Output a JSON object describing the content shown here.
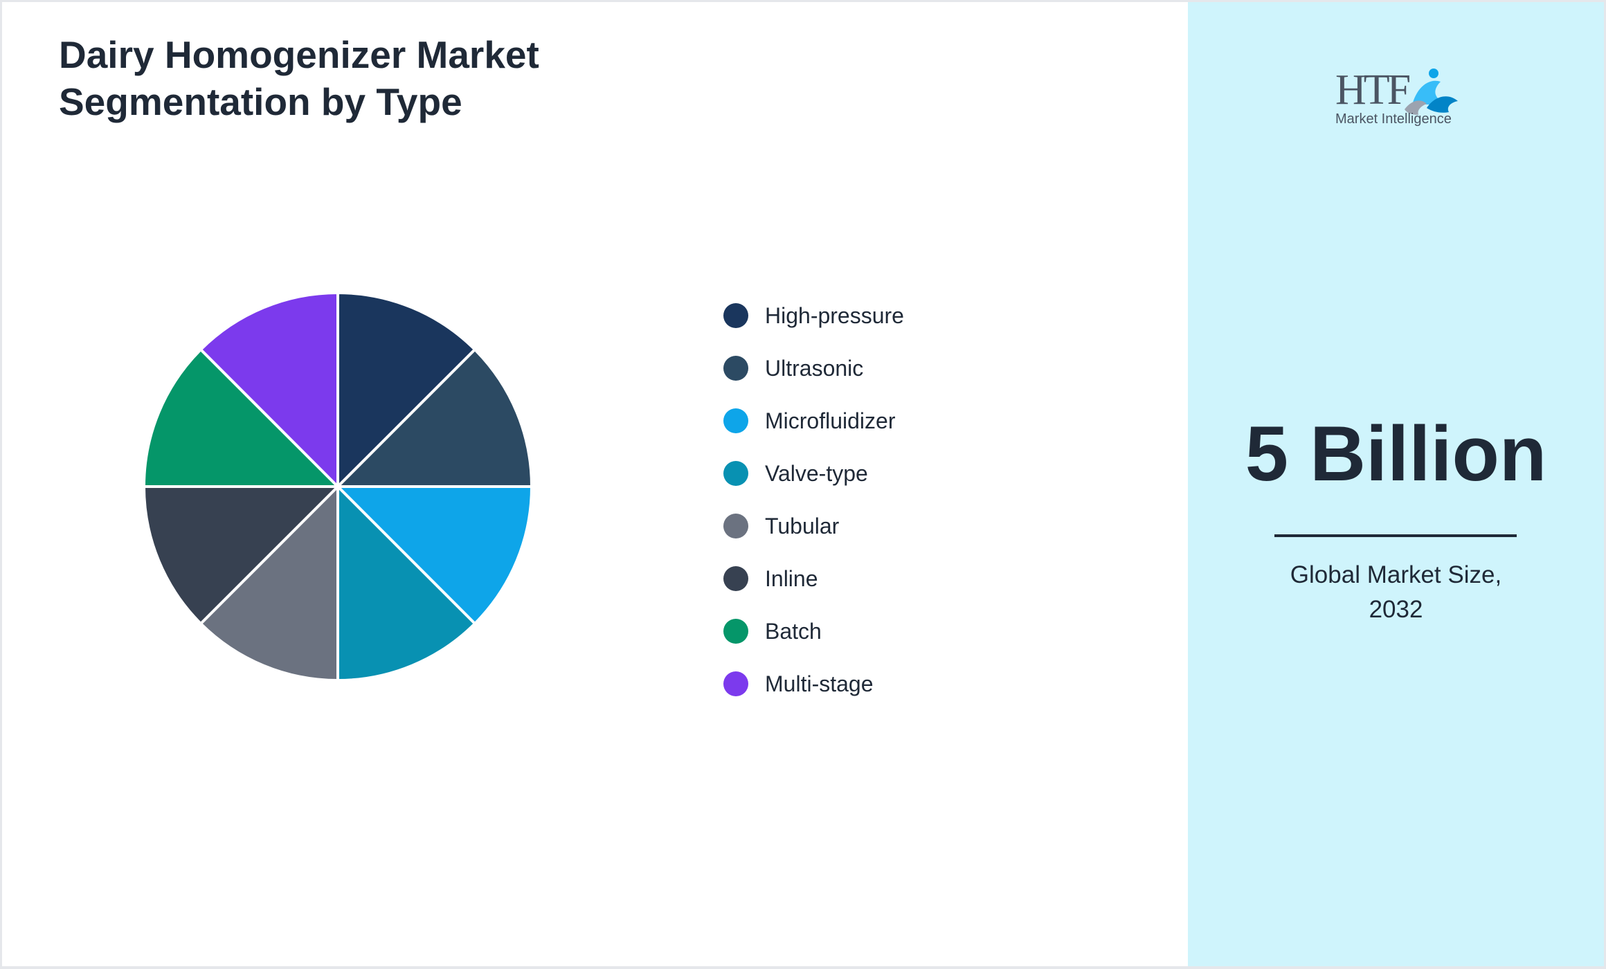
{
  "header": {
    "title_line1": "Dairy Homogenizer Market",
    "title_line2": "Segmentation by Type"
  },
  "chart_data": {
    "type": "pie",
    "title": "Dairy Homogenizer Market Segmentation by Type",
    "categories": [
      "High-pressure",
      "Ultrasonic",
      "Microfluidizer",
      "Valve-type",
      "Tubular",
      "Inline",
      "Batch",
      "Multi-stage"
    ],
    "values": [
      12.5,
      12.5,
      12.5,
      12.5,
      12.5,
      12.5,
      12.5,
      12.5
    ],
    "colors": [
      "#1a365d",
      "#2c4a63",
      "#0ea5e9",
      "#0891b2",
      "#6b7280",
      "#374151",
      "#059669",
      "#7c3aed"
    ],
    "legend_position": "right"
  },
  "side_panel": {
    "value": "5 Billion",
    "caption_line1": "Global Market Size,",
    "caption_line2": "2032",
    "logo_text_main": "HTF",
    "logo_text_sub": "Market Intelligence"
  }
}
